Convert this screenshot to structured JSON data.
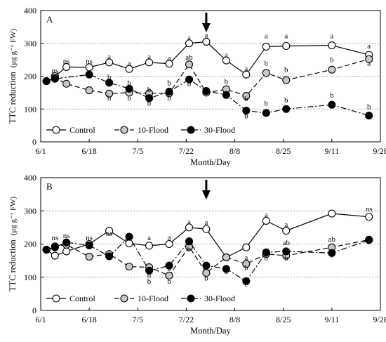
{
  "chart_data": [
    {
      "type": "line",
      "panel_label": "A",
      "xlabel": "Month/Day",
      "ylabel": "TTC reduction",
      "ylabel_units": "(μg g⁻¹ FW)",
      "ylim": [
        0,
        400
      ],
      "yticks": [
        0,
        100,
        200,
        300,
        400
      ],
      "x_tick_labels": [
        "6/1",
        "6/18",
        "7/5",
        "7/22",
        "8/8",
        "8/25",
        "9/11",
        "9/28"
      ],
      "grid": "horizontal dotted at 100, 200, 300",
      "legend_position": "bottom-left",
      "arrow_at": "7/29",
      "series": [
        {
          "name": "Control",
          "marker": "open-circle",
          "line": "solid",
          "x": [
            "6/6",
            "6/10",
            "6/18",
            "6/25",
            "7/2",
            "7/9",
            "7/16",
            "7/23",
            "7/29",
            "8/5",
            "8/12",
            "8/19",
            "8/26",
            "9/11",
            "9/24"
          ],
          "y": [
            200,
            228,
            227,
            242,
            222,
            242,
            238,
            300,
            305,
            248,
            205,
            290,
            292,
            294,
            265
          ]
        },
        {
          "name": "10-Flood",
          "marker": "gray-circle",
          "line": "dashed",
          "x": [
            "6/3",
            "6/6",
            "6/10",
            "6/18",
            "6/25",
            "7/2",
            "7/9",
            "7/16",
            "7/23",
            "7/29",
            "8/5",
            "8/12",
            "8/19",
            "8/26",
            "9/11",
            "9/24"
          ],
          "y": [
            185,
            195,
            177,
            157,
            147,
            150,
            148,
            148,
            236,
            150,
            160,
            140,
            210,
            188,
            220,
            252
          ]
        },
        {
          "name": "30-Flood",
          "marker": "filled-circle",
          "line": "dash-dot",
          "x": [
            "6/3",
            "6/6",
            "6/18",
            "6/25",
            "7/2",
            "7/9",
            "7/16",
            "7/23",
            "7/29",
            "8/5",
            "8/12",
            "8/19",
            "8/26",
            "9/11",
            "9/24"
          ],
          "y": [
            185,
            192,
            205,
            180,
            162,
            133,
            153,
            190,
            155,
            143,
            95,
            88,
            100,
            113,
            80
          ]
        }
      ],
      "annotations": [
        {
          "text": "ns",
          "x": "6/6",
          "y": 210
        },
        {
          "text": "ns",
          "x": "6/10",
          "y": 238
        },
        {
          "text": "ns",
          "x": "6/18",
          "y": 238
        },
        {
          "text": "a",
          "x": "6/25",
          "y": 252
        },
        {
          "text": "a",
          "x": "7/2",
          "y": 232
        },
        {
          "text": "a",
          "x": "7/9",
          "y": 252
        },
        {
          "text": "a",
          "x": "7/16",
          "y": 248
        },
        {
          "text": "b",
          "x": "6/25",
          "y": 126
        },
        {
          "text": "b",
          "x": "7/2",
          "y": 126
        },
        {
          "text": "b",
          "x": "7/9",
          "y": 110
        },
        {
          "text": "b",
          "x": "7/16",
          "y": 126
        },
        {
          "text": "b",
          "x": "6/25",
          "y": 190
        },
        {
          "text": "b",
          "x": "7/2",
          "y": 172
        },
        {
          "text": "b",
          "x": "7/9",
          "y": 152
        },
        {
          "text": "b",
          "x": "7/16",
          "y": 172
        },
        {
          "text": "a",
          "x": "7/23",
          "y": 310
        },
        {
          "text": "ab",
          "x": "7/23",
          "y": 250
        },
        {
          "text": "b",
          "x": "7/23",
          "y": 170
        },
        {
          "text": "a",
          "x": "7/29",
          "y": 318
        },
        {
          "text": "a",
          "x": "8/5",
          "y": 258
        },
        {
          "text": "b",
          "x": "8/5",
          "y": 176
        },
        {
          "text": "a",
          "x": "8/12",
          "y": 216
        },
        {
          "text": "b",
          "x": "8/12",
          "y": 124
        },
        {
          "text": "b",
          "x": "8/12",
          "y": 72
        },
        {
          "text": "a",
          "x": "8/19",
          "y": 316
        },
        {
          "text": "a",
          "x": "8/26",
          "y": 316
        },
        {
          "text": "a",
          "x": "9/11",
          "y": 316
        },
        {
          "text": "a",
          "x": "9/24",
          "y": 284
        },
        {
          "text": "b",
          "x": "8/19",
          "y": 232
        },
        {
          "text": "b",
          "x": "8/26",
          "y": 213
        },
        {
          "text": "b",
          "x": "9/11",
          "y": 243
        },
        {
          "text": "a",
          "x": "9/24",
          "y": 232
        },
        {
          "text": "b",
          "x": "8/19",
          "y": 110
        },
        {
          "text": "b",
          "x": "8/26",
          "y": 120
        },
        {
          "text": "b",
          "x": "9/11",
          "y": 135
        },
        {
          "text": "b",
          "x": "9/24",
          "y": 100
        }
      ]
    },
    {
      "type": "line",
      "panel_label": "B",
      "xlabel": "Month/Day",
      "ylabel": "TTC reduction",
      "ylabel_units": "(μg g⁻¹ FW)",
      "ylim": [
        0,
        400
      ],
      "yticks": [
        0,
        100,
        200,
        300,
        400
      ],
      "x_tick_labels": [
        "6/1",
        "6/18",
        "7/5",
        "7/22",
        "8/8",
        "8/25",
        "9/11",
        "9/28"
      ],
      "grid": "horizontal dotted at 100, 200, 300",
      "legend_position": "bottom-left",
      "arrow_at": "7/29",
      "series": [
        {
          "name": "Control",
          "marker": "open-circle",
          "line": "solid",
          "x": [
            "6/3",
            "6/6",
            "6/10",
            "6/18",
            "6/25",
            "7/2",
            "7/9",
            "7/16",
            "7/23",
            "7/29",
            "8/5",
            "8/12",
            "8/19",
            "8/26",
            "9/11",
            "9/24"
          ],
          "y": [
            183,
            165,
            178,
            200,
            240,
            202,
            195,
            200,
            250,
            245,
            160,
            190,
            270,
            240,
            292,
            282
          ]
        },
        {
          "name": "10-Flood",
          "marker": "gray-circle",
          "line": "dashed",
          "x": [
            "6/3",
            "6/6",
            "6/10",
            "6/18",
            "6/25",
            "7/2",
            "7/9",
            "7/16",
            "7/23",
            "7/29",
            "8/5",
            "8/12",
            "8/19",
            "8/26",
            "9/11",
            "9/24"
          ],
          "y": [
            183,
            193,
            198,
            162,
            170,
            132,
            130,
            105,
            192,
            113,
            160,
            140,
            170,
            165,
            190,
            213
          ]
        },
        {
          "name": "30-Flood",
          "marker": "filled-circle",
          "line": "dash-dot",
          "x": [
            "6/3",
            "6/6",
            "6/10",
            "6/18",
            "6/25",
            "7/2",
            "7/9",
            "7/16",
            "7/23",
            "7/29",
            "8/5",
            "8/12",
            "8/19",
            "8/26",
            "9/11",
            "9/24"
          ],
          "y": [
            183,
            190,
            205,
            196,
            163,
            222,
            120,
            135,
            208,
            135,
            125,
            88,
            175,
            178,
            173,
            212
          ]
        }
      ],
      "annotations": [
        {
          "text": "ns",
          "x": "6/6",
          "y": 212
        },
        {
          "text": "ns",
          "x": "6/10",
          "y": 218
        },
        {
          "text": "ns",
          "x": "6/18",
          "y": 212
        },
        {
          "text": "ns",
          "x": "6/25",
          "y": 224
        },
        {
          "text": "ns",
          "x": "7/2",
          "y": 218
        },
        {
          "text": "a",
          "x": "7/9",
          "y": 212
        },
        {
          "text": "a",
          "x": "7/16",
          "y": 213
        },
        {
          "text": "b",
          "x": "7/9",
          "y": 98
        },
        {
          "text": "b",
          "x": "7/16",
          "y": 80
        },
        {
          "text": "b",
          "x": "7/9",
          "y": 80
        },
        {
          "text": "b",
          "x": "7/16",
          "y": 118
        },
        {
          "text": "a",
          "x": "7/23",
          "y": 260
        },
        {
          "text": "a",
          "x": "7/29",
          "y": 258
        },
        {
          "text": "b",
          "x": "7/23",
          "y": 178
        },
        {
          "text": "b",
          "x": "7/29",
          "y": 90
        },
        {
          "text": "a",
          "x": "7/23",
          "y": 210
        },
        {
          "text": "b",
          "x": "8/5",
          "y": 110
        },
        {
          "text": "a",
          "x": "8/12",
          "y": 152
        },
        {
          "text": "b",
          "x": "8/12",
          "y": 122
        },
        {
          "text": "c",
          "x": "8/12",
          "y": 72
        },
        {
          "text": "a",
          "x": "8/19",
          "y": 282
        },
        {
          "text": "a",
          "x": "8/26",
          "y": 252
        },
        {
          "text": "ab",
          "x": "8/26",
          "y": 197
        },
        {
          "text": "b",
          "x": "8/19",
          "y": 151
        },
        {
          "text": "b",
          "x": "8/26",
          "y": 150
        },
        {
          "text": "ab",
          "x": "9/11",
          "y": 207
        },
        {
          "text": "b",
          "x": "9/11",
          "y": 160
        },
        {
          "text": "ns",
          "x": "9/24",
          "y": 298
        }
      ]
    }
  ]
}
